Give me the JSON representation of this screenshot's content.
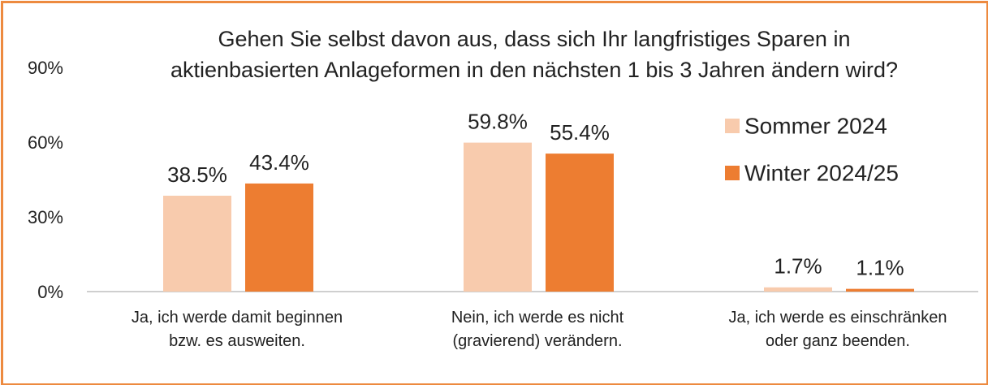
{
  "chart_data": {
    "type": "bar",
    "title": "Gehen Sie selbst davon aus, dass sich Ihr langfristiges Sparen in\naktienbasierten Anlageformen in den nächsten 1 bis 3 Jahren ändern wird?",
    "categories": [
      "Ja, ich werde damit beginnen\nbzw. es ausweiten.",
      "Nein, ich werde es nicht\n(gravierend) verändern.",
      "Ja, ich werde es einschränken\noder ganz beenden."
    ],
    "series": [
      {
        "name": "Sommer 2024",
        "color": "#f8cbad",
        "values": [
          38.5,
          59.8,
          1.7
        ],
        "value_labels": [
          "38.5%",
          "59.8%",
          "1.7%"
        ]
      },
      {
        "name": "Winter 2024/25",
        "color": "#ed7d31",
        "values": [
          43.4,
          55.4,
          1.1
        ],
        "value_labels": [
          "43.4%",
          "55.4%",
          "1.1%"
        ]
      }
    ],
    "ylim": [
      0,
      90
    ],
    "yticks": [
      {
        "value": 0,
        "label": "0%"
      },
      {
        "value": 30,
        "label": "30%"
      },
      {
        "value": 60,
        "label": "60%"
      },
      {
        "value": 90,
        "label": "90%"
      }
    ],
    "grid": false,
    "legend": "upper right"
  }
}
